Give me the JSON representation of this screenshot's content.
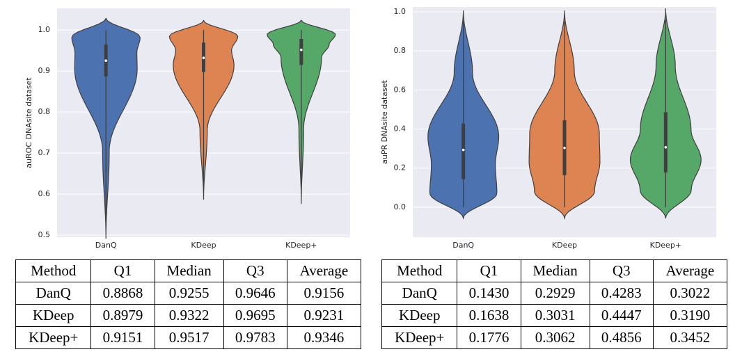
{
  "chart_data": [
    {
      "type": "violin",
      "y_label": "auROC DNAsite dataset",
      "categories": [
        "DanQ",
        "KDeep",
        "KDeep+"
      ],
      "colors": [
        "#4c72b0",
        "#dd8452",
        "#55a868"
      ],
      "min": [
        0.52,
        0.61,
        0.6
      ],
      "q1": [
        0.8868,
        0.8979,
        0.9151
      ],
      "median": [
        0.9255,
        0.9322,
        0.9517
      ],
      "q3": [
        0.9646,
        0.9695,
        0.9783
      ],
      "max": [
        1.0,
        1.0,
        1.0
      ],
      "ylim": [
        0.495,
        1.053
      ],
      "yticks": [
        0.5,
        0.6,
        0.7,
        0.8,
        0.9,
        {
          "value": 1.0,
          "label": "1.0"
        }
      ],
      "grid": true
    },
    {
      "type": "violin",
      "y_label": "auPR DNAsite dataset",
      "categories": [
        "DanQ",
        "KDeep",
        "KDeep+"
      ],
      "colors": [
        "#4c72b0",
        "#dd8452",
        "#55a868"
      ],
      "min": [
        0.0,
        0.0,
        0.0
      ],
      "q1": [
        0.143,
        0.1638,
        0.1776
      ],
      "median": [
        0.2929,
        0.3031,
        0.3062
      ],
      "q3": [
        0.4283,
        0.4447,
        0.4856
      ],
      "max": [
        0.95,
        0.95,
        0.96
      ],
      "ylim": [
        -0.154,
        1.025
      ],
      "yticks": [
        {
          "value": 0.0,
          "label": "0.0"
        },
        0.2,
        0.4,
        0.6,
        0.8,
        {
          "value": 1.0,
          "label": "1.0"
        }
      ],
      "grid": true
    }
  ],
  "tables": [
    {
      "header": [
        "Method",
        "Q1",
        "Median",
        "Q3",
        "Average"
      ],
      "rows": [
        [
          "DanQ",
          "0.8868",
          "0.9255",
          "0.9646",
          "0.9156"
        ],
        [
          "KDeep",
          "0.8979",
          "0.9322",
          "0.9695",
          "0.9231"
        ],
        [
          "KDeep+",
          "0.9151",
          "0.9517",
          "0.9783",
          "0.9346"
        ]
      ]
    },
    {
      "header": [
        "Method",
        "Q1",
        "Median",
        "Q3",
        "Average"
      ],
      "rows": [
        [
          "DanQ",
          "0.1430",
          "0.2929",
          "0.4283",
          "0.3022"
        ],
        [
          "KDeep",
          "0.1638",
          "0.3031",
          "0.4447",
          "0.3190"
        ],
        [
          "KDeep+",
          "0.1776",
          "0.3062",
          "0.4856",
          "0.3452"
        ]
      ]
    }
  ]
}
